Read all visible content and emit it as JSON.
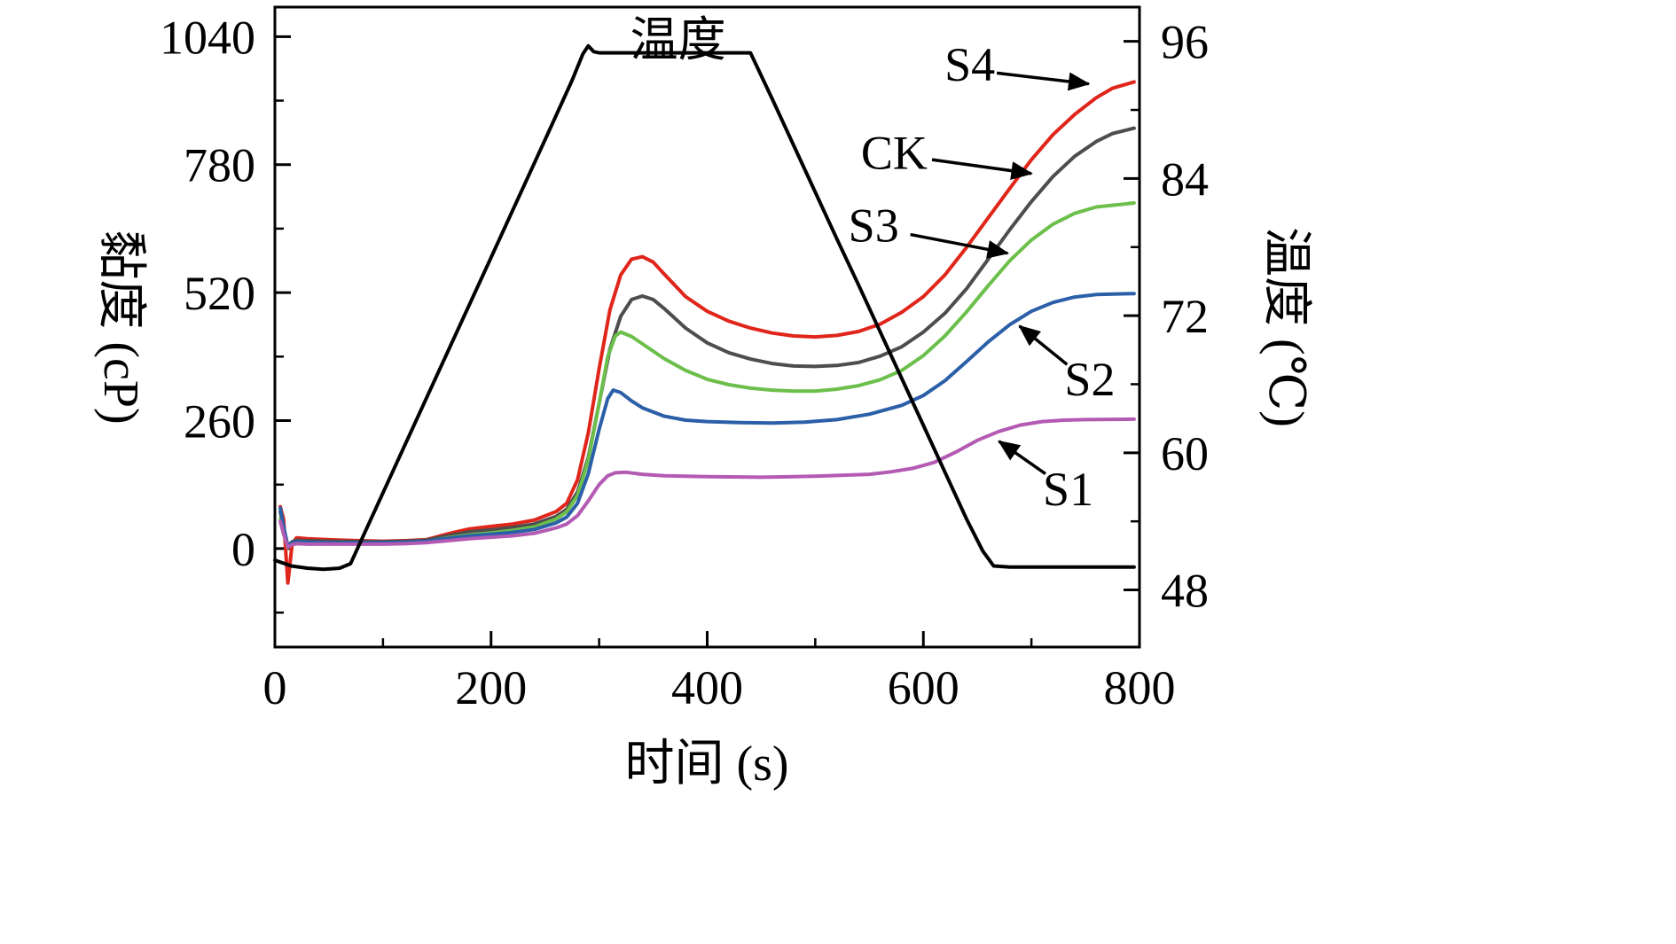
{
  "chart_data": {
    "type": "line",
    "title": "",
    "xlabel": "时间 (s)",
    "ylabel_left": "黏度 (cP)",
    "ylabel_right": "温度 (℃)",
    "xlim": [
      0,
      800
    ],
    "ylim_left": [
      -200,
      1100
    ],
    "ylim_right": [
      43,
      99
    ],
    "x_ticks": [
      0,
      200,
      400,
      600,
      800
    ],
    "y_left_ticks": [
      0,
      260,
      520,
      780,
      1040
    ],
    "y_right_ticks": [
      48,
      60,
      72,
      84,
      96
    ],
    "grid": false,
    "legend_position": "none",
    "frame_color": "#000000",
    "series": [
      {
        "name": "S4",
        "axis": "left",
        "color": "#e0251b",
        "points": [
          [
            5,
            85
          ],
          [
            8,
            60
          ],
          [
            12,
            -70
          ],
          [
            16,
            10
          ],
          [
            20,
            22
          ],
          [
            30,
            20
          ],
          [
            50,
            18
          ],
          [
            80,
            16
          ],
          [
            100,
            15
          ],
          [
            120,
            16
          ],
          [
            140,
            18
          ],
          [
            160,
            30
          ],
          [
            180,
            40
          ],
          [
            200,
            45
          ],
          [
            220,
            50
          ],
          [
            240,
            58
          ],
          [
            260,
            75
          ],
          [
            270,
            92
          ],
          [
            280,
            140
          ],
          [
            290,
            235
          ],
          [
            300,
            365
          ],
          [
            310,
            485
          ],
          [
            320,
            556
          ],
          [
            330,
            588
          ],
          [
            340,
            593
          ],
          [
            350,
            582
          ],
          [
            360,
            558
          ],
          [
            380,
            512
          ],
          [
            400,
            482
          ],
          [
            420,
            462
          ],
          [
            440,
            448
          ],
          [
            460,
            438
          ],
          [
            480,
            432
          ],
          [
            500,
            430
          ],
          [
            520,
            433
          ],
          [
            540,
            441
          ],
          [
            560,
            456
          ],
          [
            580,
            480
          ],
          [
            600,
            512
          ],
          [
            620,
            556
          ],
          [
            640,
            612
          ],
          [
            660,
            672
          ],
          [
            680,
            732
          ],
          [
            700,
            790
          ],
          [
            720,
            841
          ],
          [
            740,
            882
          ],
          [
            760,
            916
          ],
          [
            775,
            935
          ],
          [
            795,
            948
          ]
        ]
      },
      {
        "name": "CK",
        "axis": "left",
        "color": "#4d4d4d",
        "points": [
          [
            5,
            75
          ],
          [
            8,
            40
          ],
          [
            12,
            5
          ],
          [
            16,
            14
          ],
          [
            20,
            17
          ],
          [
            30,
            16
          ],
          [
            50,
            15
          ],
          [
            80,
            14
          ],
          [
            100,
            14
          ],
          [
            120,
            15
          ],
          [
            140,
            17
          ],
          [
            160,
            26
          ],
          [
            180,
            34
          ],
          [
            200,
            38
          ],
          [
            220,
            43
          ],
          [
            240,
            50
          ],
          [
            260,
            65
          ],
          [
            270,
            80
          ],
          [
            280,
            115
          ],
          [
            290,
            185
          ],
          [
            300,
            295
          ],
          [
            310,
            405
          ],
          [
            320,
            472
          ],
          [
            330,
            506
          ],
          [
            340,
            513
          ],
          [
            350,
            506
          ],
          [
            360,
            488
          ],
          [
            380,
            448
          ],
          [
            400,
            418
          ],
          [
            420,
            398
          ],
          [
            440,
            385
          ],
          [
            460,
            376
          ],
          [
            480,
            371
          ],
          [
            500,
            370
          ],
          [
            520,
            372
          ],
          [
            540,
            378
          ],
          [
            560,
            391
          ],
          [
            580,
            410
          ],
          [
            600,
            440
          ],
          [
            620,
            478
          ],
          [
            640,
            528
          ],
          [
            660,
            588
          ],
          [
            680,
            648
          ],
          [
            700,
            705
          ],
          [
            720,
            756
          ],
          [
            740,
            797
          ],
          [
            760,
            827
          ],
          [
            775,
            843
          ],
          [
            795,
            854
          ]
        ]
      },
      {
        "name": "S3",
        "axis": "left",
        "color": "#6cbf4b",
        "points": [
          [
            5,
            60
          ],
          [
            8,
            30
          ],
          [
            12,
            2
          ],
          [
            16,
            10
          ],
          [
            20,
            13
          ],
          [
            30,
            12
          ],
          [
            50,
            11
          ],
          [
            80,
            11
          ],
          [
            100,
            11
          ],
          [
            120,
            12
          ],
          [
            140,
            14
          ],
          [
            160,
            22
          ],
          [
            180,
            28
          ],
          [
            200,
            32
          ],
          [
            220,
            37
          ],
          [
            240,
            44
          ],
          [
            260,
            60
          ],
          [
            270,
            75
          ],
          [
            280,
            108
          ],
          [
            290,
            180
          ],
          [
            300,
            295
          ],
          [
            308,
            390
          ],
          [
            315,
            432
          ],
          [
            320,
            440
          ],
          [
            330,
            431
          ],
          [
            340,
            416
          ],
          [
            360,
            386
          ],
          [
            380,
            362
          ],
          [
            400,
            344
          ],
          [
            420,
            333
          ],
          [
            440,
            326
          ],
          [
            460,
            322
          ],
          [
            480,
            320
          ],
          [
            500,
            320
          ],
          [
            520,
            324
          ],
          [
            540,
            331
          ],
          [
            560,
            343
          ],
          [
            580,
            362
          ],
          [
            600,
            392
          ],
          [
            620,
            432
          ],
          [
            640,
            481
          ],
          [
            660,
            534
          ],
          [
            680,
            585
          ],
          [
            700,
            627
          ],
          [
            720,
            659
          ],
          [
            740,
            681
          ],
          [
            760,
            694
          ],
          [
            795,
            702
          ]
        ]
      },
      {
        "name": "S2",
        "axis": "left",
        "color": "#2b5fa8",
        "points": [
          [
            5,
            82
          ],
          [
            8,
            45
          ],
          [
            12,
            5
          ],
          [
            16,
            12
          ],
          [
            20,
            14
          ],
          [
            30,
            13
          ],
          [
            50,
            12
          ],
          [
            80,
            12
          ],
          [
            100,
            12
          ],
          [
            120,
            13
          ],
          [
            140,
            15
          ],
          [
            160,
            21
          ],
          [
            180,
            26
          ],
          [
            200,
            29
          ],
          [
            220,
            33
          ],
          [
            240,
            39
          ],
          [
            260,
            52
          ],
          [
            270,
            64
          ],
          [
            280,
            92
          ],
          [
            290,
            152
          ],
          [
            300,
            242
          ],
          [
            308,
            305
          ],
          [
            313,
            322
          ],
          [
            320,
            317
          ],
          [
            330,
            300
          ],
          [
            340,
            286
          ],
          [
            360,
            269
          ],
          [
            380,
            261
          ],
          [
            400,
            258
          ],
          [
            430,
            256
          ],
          [
            460,
            255
          ],
          [
            490,
            257
          ],
          [
            520,
            262
          ],
          [
            550,
            273
          ],
          [
            580,
            291
          ],
          [
            600,
            311
          ],
          [
            620,
            341
          ],
          [
            640,
            380
          ],
          [
            660,
            420
          ],
          [
            680,
            455
          ],
          [
            700,
            482
          ],
          [
            720,
            500
          ],
          [
            740,
            511
          ],
          [
            760,
            516
          ],
          [
            795,
            518
          ]
        ]
      },
      {
        "name": "S1",
        "axis": "left",
        "color": "#b35ab3",
        "points": [
          [
            5,
            55
          ],
          [
            8,
            30
          ],
          [
            12,
            3
          ],
          [
            16,
            8
          ],
          [
            20,
            10
          ],
          [
            30,
            9
          ],
          [
            50,
            9
          ],
          [
            80,
            9
          ],
          [
            100,
            9
          ],
          [
            120,
            10
          ],
          [
            140,
            12
          ],
          [
            160,
            16
          ],
          [
            180,
            20
          ],
          [
            200,
            23
          ],
          [
            220,
            26
          ],
          [
            240,
            31
          ],
          [
            260,
            42
          ],
          [
            270,
            50
          ],
          [
            280,
            67
          ],
          [
            290,
            97
          ],
          [
            300,
            130
          ],
          [
            308,
            148
          ],
          [
            315,
            154
          ],
          [
            325,
            155
          ],
          [
            340,
            151
          ],
          [
            360,
            148
          ],
          [
            400,
            146
          ],
          [
            450,
            145
          ],
          [
            500,
            147
          ],
          [
            550,
            151
          ],
          [
            570,
            156
          ],
          [
            590,
            163
          ],
          [
            610,
            175
          ],
          [
            630,
            196
          ],
          [
            650,
            220
          ],
          [
            670,
            238
          ],
          [
            690,
            251
          ],
          [
            710,
            258
          ],
          [
            730,
            261
          ],
          [
            750,
            262
          ],
          [
            795,
            263
          ]
        ]
      },
      {
        "name": "温度",
        "axis": "right",
        "color": "#000000",
        "points": [
          [
            0,
            50.6
          ],
          [
            15,
            50.1
          ],
          [
            30,
            49.9
          ],
          [
            45,
            49.8
          ],
          [
            60,
            49.9
          ],
          [
            70,
            50.3
          ],
          [
            100,
            56.5
          ],
          [
            150,
            66.8
          ],
          [
            200,
            77.1
          ],
          [
            250,
            87.4
          ],
          [
            275,
            92.6
          ],
          [
            285,
            94.9
          ],
          [
            290,
            95.6
          ],
          [
            295,
            95.1
          ],
          [
            300,
            95.0
          ],
          [
            350,
            95.0
          ],
          [
            400,
            95.0
          ],
          [
            440,
            95.0
          ],
          [
            460,
            91.0
          ],
          [
            480,
            86.9
          ],
          [
            500,
            82.8
          ],
          [
            520,
            78.7
          ],
          [
            540,
            74.7
          ],
          [
            560,
            70.6
          ],
          [
            580,
            66.5
          ],
          [
            600,
            62.4
          ],
          [
            620,
            58.3
          ],
          [
            640,
            54.2
          ],
          [
            655,
            51.4
          ],
          [
            665,
            50.1
          ],
          [
            680,
            50.0
          ],
          [
            720,
            50.0
          ],
          [
            760,
            50.0
          ],
          [
            795,
            50.0
          ]
        ]
      }
    ],
    "annotations": [
      {
        "text": "温度",
        "t": 373,
        "v": 1035,
        "arrow": null
      },
      {
        "text": "S4",
        "t": 643,
        "v": 985,
        "arrow": {
          "t1": 668,
          "v1": 966,
          "t2": 753,
          "v2": 944
        }
      },
      {
        "text": "CK",
        "t": 573,
        "v": 806,
        "arrow": {
          "t1": 608,
          "v1": 790,
          "t2": 700,
          "v2": 762
        }
      },
      {
        "text": "S3",
        "t": 554,
        "v": 658,
        "arrow": {
          "t1": 588,
          "v1": 638,
          "t2": 678,
          "v2": 600
        }
      },
      {
        "text": "S2",
        "t": 754,
        "v": 346,
        "arrow": {
          "t1": 733,
          "v1": 374,
          "t2": 689,
          "v2": 452
        }
      },
      {
        "text": "S1",
        "t": 734,
        "v": 122,
        "arrow": {
          "t1": 713,
          "v1": 152,
          "t2": 670,
          "v2": 218
        }
      }
    ]
  }
}
